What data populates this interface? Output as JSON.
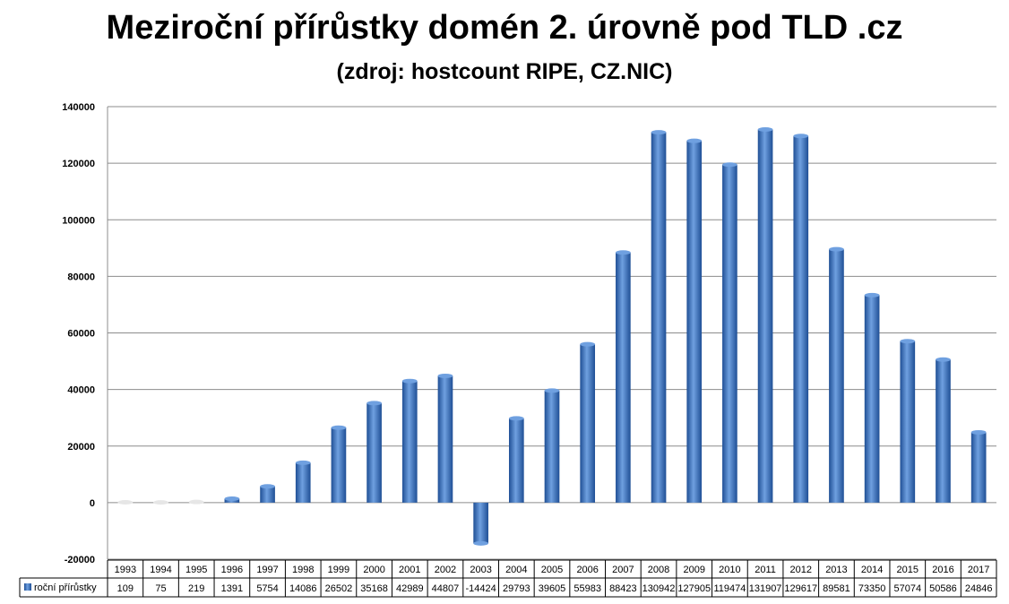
{
  "chart_data": {
    "type": "bar",
    "title": "Meziroční přírůstky domén 2. úrovně pod TLD .cz",
    "subtitle": "(zdroj:  hostcount RIPE, CZ.NIC)",
    "categories": [
      "1993",
      "1994",
      "1995",
      "1996",
      "1997",
      "1998",
      "1999",
      "2000",
      "2001",
      "2002",
      "2003",
      "2004",
      "2005",
      "2006",
      "2007",
      "2008",
      "2009",
      "2010",
      "2011",
      "2012",
      "2013",
      "2014",
      "2015",
      "2016",
      "2017"
    ],
    "series": [
      {
        "name": "roční přírůstky",
        "values": [
          109,
          75,
          219,
          1391,
          5754,
          14086,
          26502,
          35168,
          42989,
          44807,
          -14424,
          29793,
          39605,
          55983,
          88423,
          130942,
          127905,
          119474,
          131907,
          129617,
          89581,
          73350,
          57074,
          50586,
          24846
        ],
        "labels": [
          "109",
          "75",
          "219",
          "1391",
          "5754",
          "14086",
          "26502",
          "35168",
          "42989",
          "44807",
          "-14424",
          "29793",
          "39605",
          "55983",
          "88423",
          "130942",
          "127905",
          "119474",
          "131907",
          "129617",
          "89581",
          "73350",
          "57074",
          "50586",
          "24846"
        ]
      }
    ],
    "y_ticks": [
      "-20000",
      "0",
      "20000",
      "40000",
      "60000",
      "80000",
      "100000",
      "120000",
      "140000"
    ],
    "ylim": [
      -20000,
      140000
    ],
    "grid": true,
    "legend": "data-table",
    "colors": {
      "bar": "#3a73c4",
      "bar_dark": "#1f4f95",
      "bar_light": "#6fa0e0",
      "grid": "#8c8c8c"
    }
  }
}
